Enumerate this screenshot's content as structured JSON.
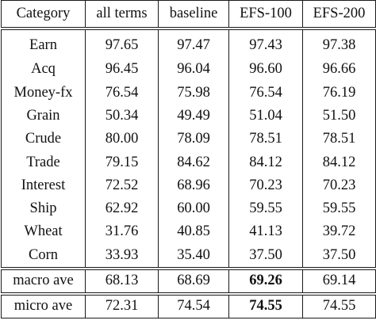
{
  "table": {
    "headers": [
      "Category",
      "all terms",
      "baseline",
      "EFS-100",
      "EFS-200"
    ],
    "rows": [
      {
        "category": "Earn",
        "values": [
          "97.65",
          "97.47",
          "97.43",
          "97.38"
        ]
      },
      {
        "category": "Acq",
        "values": [
          "96.45",
          "96.04",
          "96.60",
          "96.66"
        ]
      },
      {
        "category": "Money-fx",
        "values": [
          "76.54",
          "75.98",
          "76.54",
          "76.19"
        ]
      },
      {
        "category": "Grain",
        "values": [
          "50.34",
          "49.49",
          "51.04",
          "51.50"
        ]
      },
      {
        "category": "Crude",
        "values": [
          "80.00",
          "78.09",
          "78.51",
          "78.51"
        ]
      },
      {
        "category": "Trade",
        "values": [
          "79.15",
          "84.62",
          "84.12",
          "84.12"
        ]
      },
      {
        "category": "Interest",
        "values": [
          "72.52",
          "68.96",
          "70.23",
          "70.23"
        ]
      },
      {
        "category": "Ship",
        "values": [
          "62.92",
          "60.00",
          "59.55",
          "59.55"
        ]
      },
      {
        "category": "Wheat",
        "values": [
          "31.76",
          "40.85",
          "41.13",
          "39.72"
        ]
      },
      {
        "category": "Corn",
        "values": [
          "33.93",
          "35.40",
          "37.50",
          "37.50"
        ]
      }
    ],
    "summary": [
      {
        "category": "macro ave",
        "values": [
          "68.13",
          "68.69",
          "69.26",
          "69.14"
        ],
        "bold_index": 2
      },
      {
        "category": "micro ave",
        "values": [
          "72.31",
          "74.54",
          "74.55",
          "74.55"
        ],
        "bold_index": 2
      }
    ]
  }
}
